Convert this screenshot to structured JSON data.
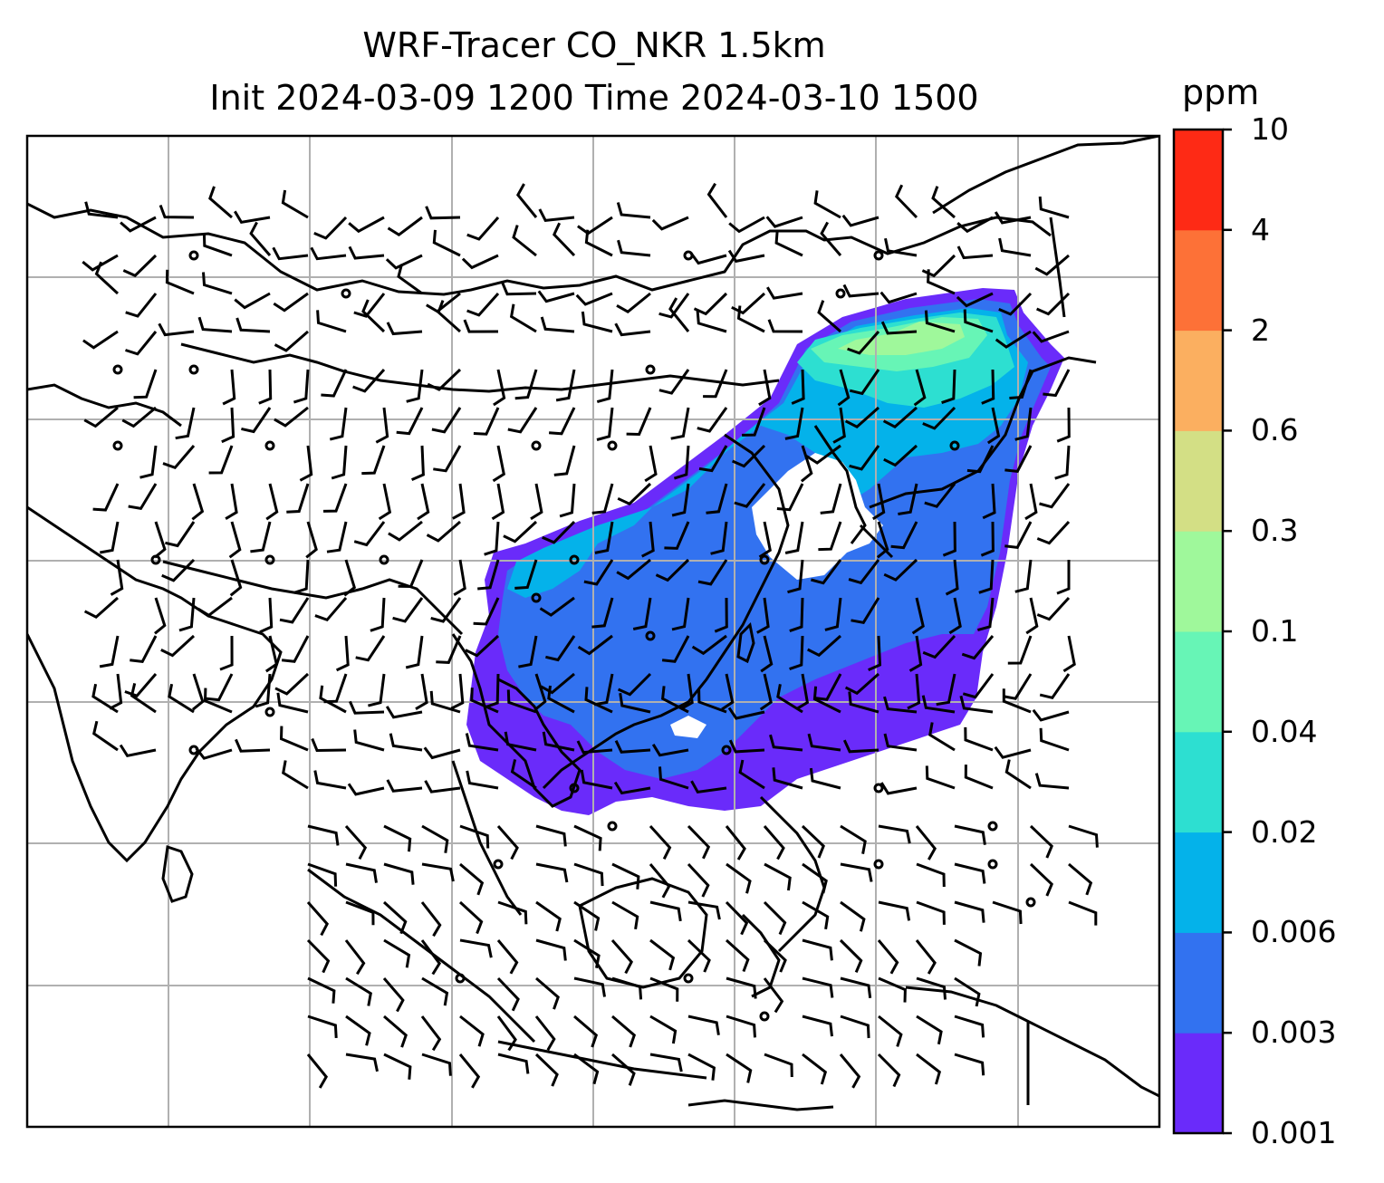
{
  "title": {
    "line1": "WRF-Tracer CO_NKR 1.5km",
    "line2": "Init 2024-03-09 1200 Time 2024-03-10 1500"
  },
  "colorbar": {
    "unit": "ppm",
    "levels": [
      "0.001",
      "0.003",
      "0.006",
      "0.02",
      "0.04",
      "0.1",
      "0.3",
      "0.6",
      "2",
      "4",
      "10"
    ],
    "colors": [
      "#6a2bfa",
      "#3272f0",
      "#04b2ea",
      "#2ddfd1",
      "#67f5b6",
      "#9ff89b",
      "#d3df85",
      "#fbaf60",
      "#fd7137",
      "#fe2a15"
    ]
  },
  "map": {
    "gridlines": true,
    "projection_extent_note": "",
    "wind_barbs": true
  }
}
